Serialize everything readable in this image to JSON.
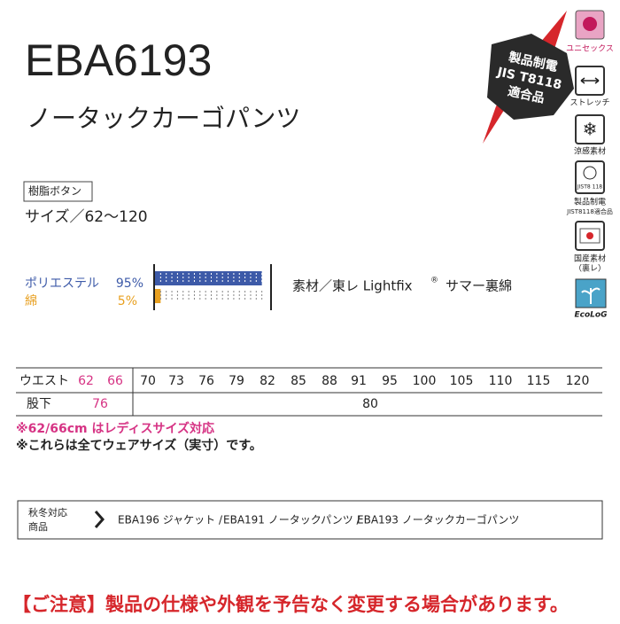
{
  "header": {
    "code": "EBA6193",
    "name": "ノータックカーゴパンツ",
    "tag": "樹脂ボタン",
    "size": "サイズ／62〜120"
  },
  "badge": {
    "lines": [
      "製品制電",
      "JIS T8118",
      "適合品"
    ]
  },
  "icons": [
    {
      "label": "ユニセックス"
    },
    {
      "label": "ストレッチ"
    },
    {
      "label": "涼感素材"
    },
    {
      "symbol": "JIST8 118",
      "label": "製品制電",
      "sublabel": "JIST8118適合品"
    },
    {
      "label": "国産素材",
      "sublabel": "（裏レ）"
    },
    {
      "label": "EcoLoG"
    }
  ],
  "materials": [
    {
      "name": "ポリエステル",
      "value": 95,
      "value_label": "95%",
      "color": "#3d5aa8"
    },
    {
      "name": "綿",
      "value": 5,
      "value_label": "5%",
      "color": "#e8a020"
    }
  ],
  "fabric": {
    "text": "素材／東レ Lightfix",
    "mark": "®",
    "lining": "サマー裏綿"
  },
  "size_table": {
    "waist_label": "ウエスト",
    "ladies_waist": [
      "62",
      "66"
    ],
    "waist": [
      "70",
      "73",
      "76",
      "79",
      "82",
      "85",
      "88",
      "91",
      "95",
      "100",
      "105",
      "110",
      "115",
      "120"
    ],
    "inseam_label": "股下",
    "ladies_inseam": "76",
    "inseam": "80"
  },
  "notes": [
    "※62/66cm はレディスサイズ対応",
    "※これらは全てウェアサイズ（実寸）です。"
  ],
  "related": {
    "label": [
      "秋冬対応",
      "商品"
    ],
    "items": [
      "EBA196 ジャケット /",
      "EBA191 ノータックパンツ /",
      "EBA193 ノータックカーゴパンツ"
    ]
  },
  "warning": "【ご注意】製品の仕様や外観を予告なく変更する場合があります。"
}
